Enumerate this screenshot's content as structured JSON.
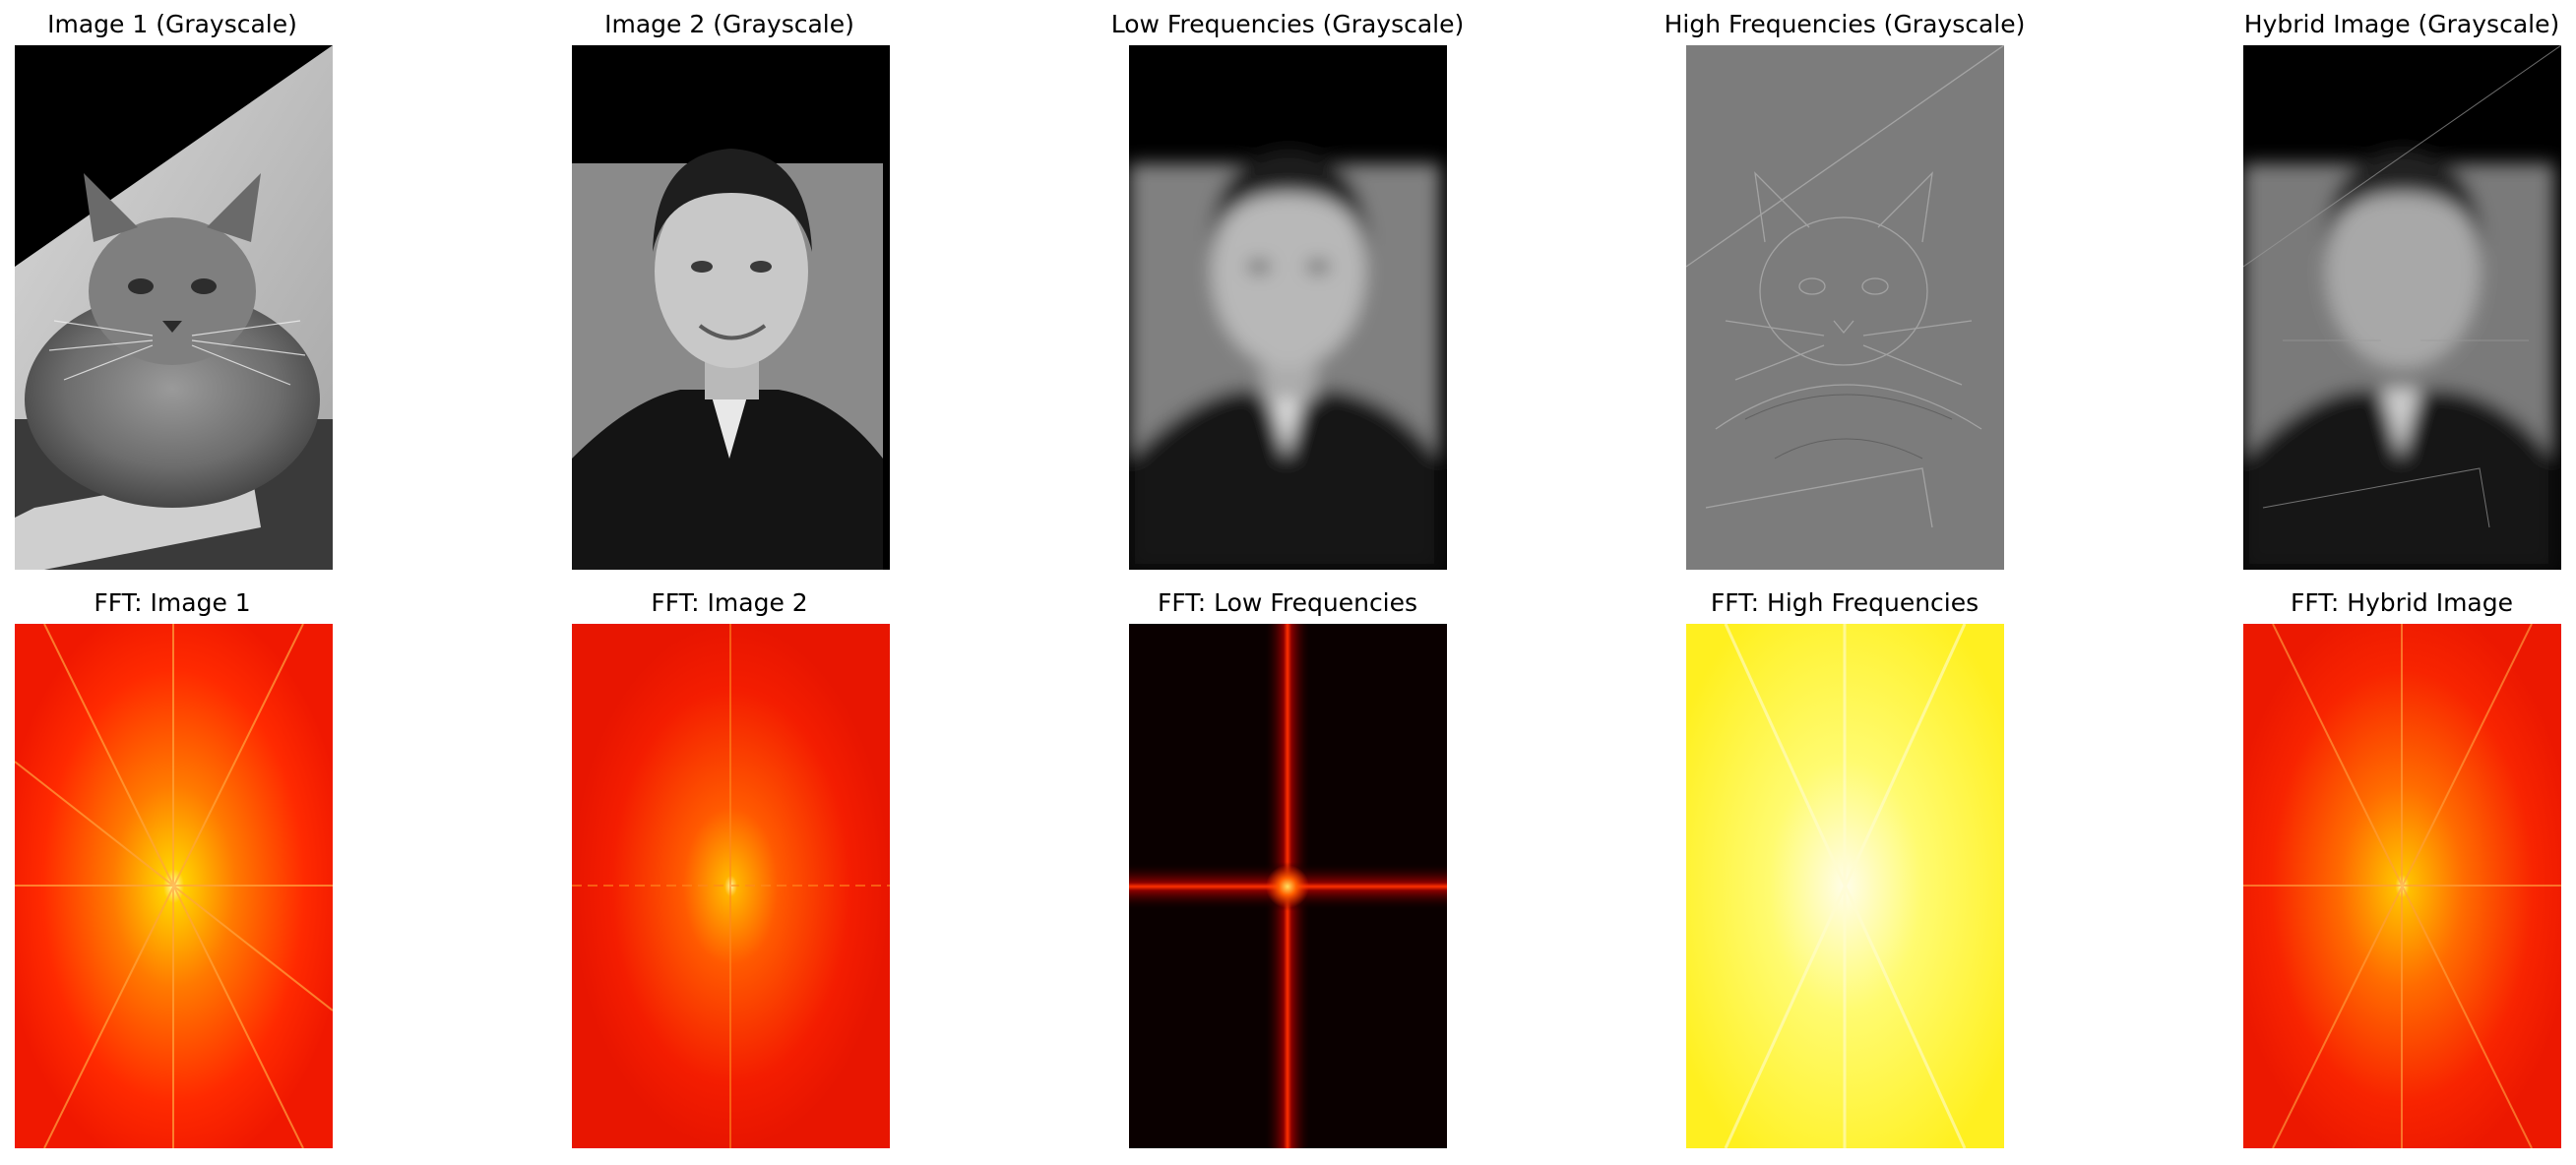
{
  "panels_top": [
    {
      "title": "Image 1 (Grayscale)",
      "subject": "cat-grayscale"
    },
    {
      "title": "Image 2 (Grayscale)",
      "subject": "man-portrait-grayscale"
    },
    {
      "title": "Low Frequencies (Grayscale)",
      "subject": "blurred-man"
    },
    {
      "title": "High Frequencies (Grayscale)",
      "subject": "cat-edges"
    },
    {
      "title": "Hybrid Image (Grayscale)",
      "subject": "hybrid-cat-man"
    }
  ],
  "panels_bottom": [
    {
      "title": "FFT: Image 1",
      "colormap": "hot"
    },
    {
      "title": "FFT: Image 2",
      "colormap": "hot"
    },
    {
      "title": "FFT: Low Frequencies",
      "colormap": "hot"
    },
    {
      "title": "FFT: High Frequencies",
      "colormap": "hot"
    },
    {
      "title": "FFT: Hybrid Image",
      "colormap": "hot"
    }
  ]
}
